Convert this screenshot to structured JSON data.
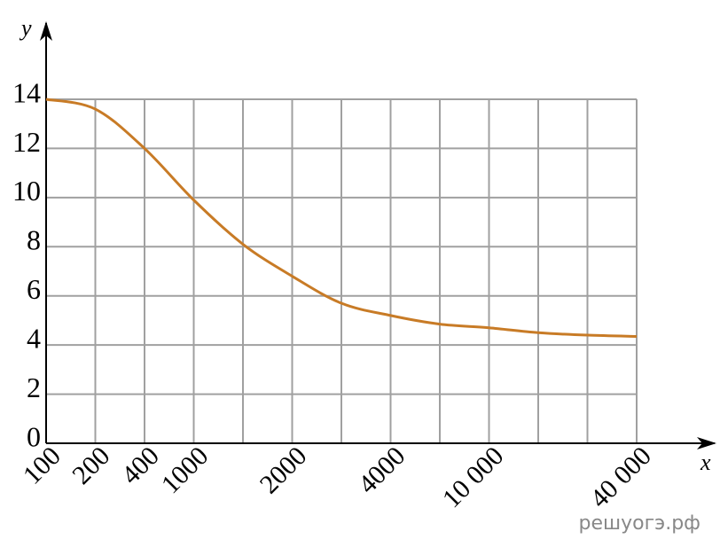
{
  "chart_data": {
    "type": "line",
    "x_label": "x",
    "y_label": "y",
    "categories": [
      "100",
      "200",
      "400",
      "1000",
      null,
      "2000",
      null,
      "4000",
      null,
      "10 000",
      null,
      null,
      "40 000"
    ],
    "series": [
      {
        "color": "#c87b26",
        "values": [
          14.0,
          13.6,
          12.0,
          9.9,
          8.1,
          6.8,
          5.7,
          5.2,
          4.85,
          4.7,
          4.5,
          4.4,
          4.35
        ]
      }
    ],
    "ylim": [
      0,
      14
    ],
    "yticks": [
      0,
      2,
      4,
      6,
      8,
      10,
      12,
      14
    ],
    "grid": true,
    "watermark": "решуогэ.рф"
  }
}
